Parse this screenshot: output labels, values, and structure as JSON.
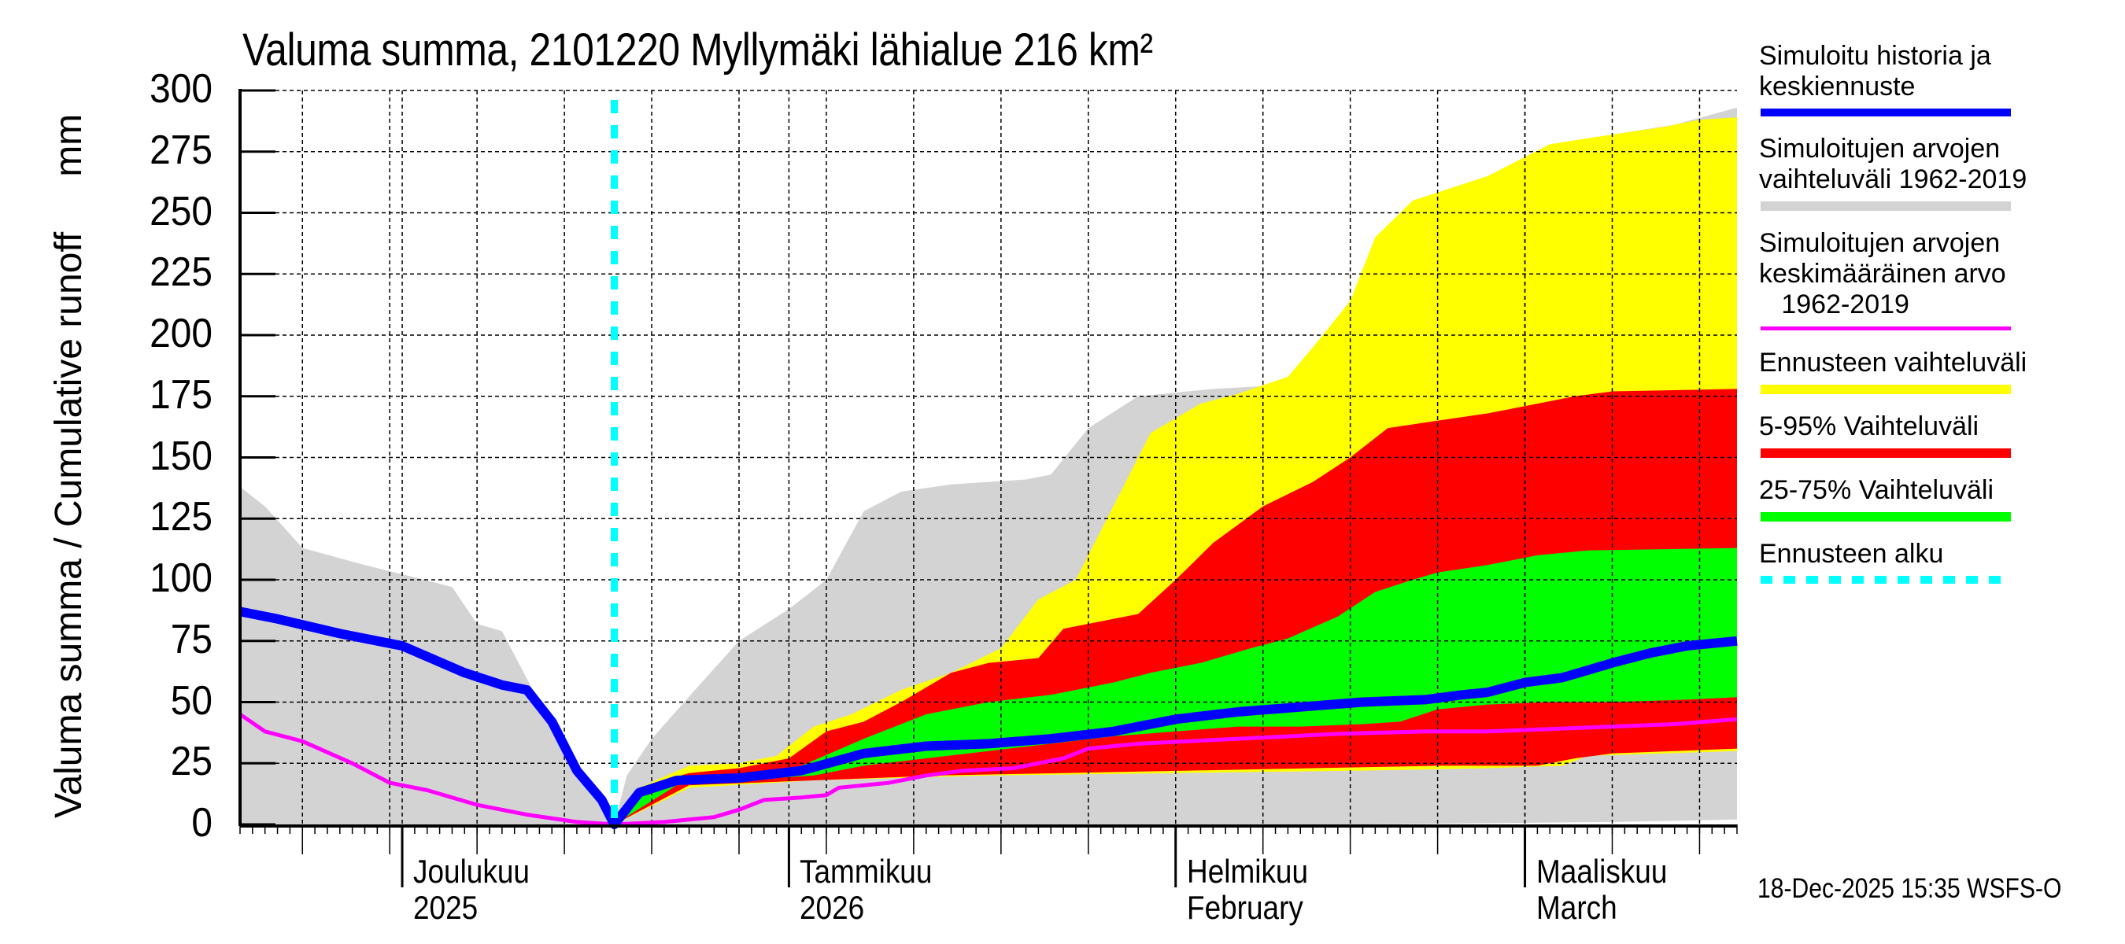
{
  "chart_data": {
    "type": "area",
    "title": "Valuma summa, 2101220 Myllymäki lähialue 216 km²",
    "ylabel": "Valuma summa / Cumulative runoff",
    "yunit": "mm",
    "ylim": [
      0,
      300
    ],
    "yticks": [
      0,
      25,
      50,
      75,
      100,
      125,
      150,
      175,
      200,
      225,
      250,
      275,
      300
    ],
    "grid": true,
    "x_unit": "days since 18-Nov-2025",
    "xlim": [
      0,
      120
    ],
    "forecast_start_day": 30,
    "month_ticks": [
      {
        "day": 13,
        "line1": "Joulukuu",
        "line2": "2025"
      },
      {
        "day": 44,
        "line1": "Tammikuu",
        "line2": "2026"
      },
      {
        "day": 75,
        "line1": "Helmikuu",
        "line2": "February"
      },
      {
        "day": 103,
        "line1": "Maaliskuu",
        "line2": "March"
      }
    ],
    "series": [
      {
        "name": "Simuloitujen arvojen vaihteluväli 1962-2019",
        "kind": "band",
        "color": "#d3d3d3",
        "upper": [
          [
            0,
            138
          ],
          [
            2,
            130
          ],
          [
            5,
            113
          ],
          [
            10,
            106
          ],
          [
            14,
            101
          ],
          [
            17,
            97
          ],
          [
            19,
            82
          ],
          [
            21,
            79
          ],
          [
            25,
            40
          ],
          [
            28,
            15
          ],
          [
            30,
            0
          ],
          [
            31,
            20
          ],
          [
            33,
            35
          ],
          [
            37,
            58
          ],
          [
            40,
            75
          ],
          [
            44,
            88
          ],
          [
            47,
            100
          ],
          [
            50,
            128
          ],
          [
            53,
            136
          ],
          [
            57,
            139
          ],
          [
            63,
            141
          ],
          [
            65,
            143
          ],
          [
            68,
            162
          ],
          [
            72,
            175
          ],
          [
            78,
            178
          ],
          [
            85,
            180
          ],
          [
            90,
            183
          ],
          [
            92,
            183
          ],
          [
            95,
            205
          ],
          [
            98,
            245
          ],
          [
            101,
            260
          ],
          [
            105,
            272
          ],
          [
            110,
            282
          ],
          [
            115,
            286
          ],
          [
            120,
            293
          ]
        ],
        "lower": [
          [
            0,
            0
          ],
          [
            30,
            0
          ],
          [
            60,
            0
          ],
          [
            90,
            0
          ],
          [
            110,
            1
          ],
          [
            120,
            2
          ]
        ]
      },
      {
        "name": "Ennusteen vaihteluväli",
        "kind": "band",
        "color": "#ffff00",
        "upper": [
          [
            30,
            0
          ],
          [
            32,
            15
          ],
          [
            36,
            24
          ],
          [
            40,
            25
          ],
          [
            43,
            28
          ],
          [
            46,
            40
          ],
          [
            49,
            45
          ],
          [
            53,
            55
          ],
          [
            57,
            62
          ],
          [
            61,
            72
          ],
          [
            64,
            92
          ],
          [
            67,
            100
          ],
          [
            70,
            130
          ],
          [
            73,
            160
          ],
          [
            77,
            172
          ],
          [
            80,
            176
          ],
          [
            84,
            183
          ],
          [
            86,
            195
          ],
          [
            89,
            214
          ],
          [
            91,
            240
          ],
          [
            94,
            255
          ],
          [
            100,
            265
          ],
          [
            105,
            278
          ],
          [
            110,
            282
          ],
          [
            114,
            285
          ],
          [
            117,
            288
          ],
          [
            120,
            289
          ]
        ],
        "lower": [
          [
            30,
            0
          ],
          [
            36,
            15
          ],
          [
            46,
            18
          ],
          [
            60,
            20
          ],
          [
            75,
            21
          ],
          [
            90,
            22
          ],
          [
            100,
            23
          ],
          [
            106,
            24
          ],
          [
            108,
            28
          ],
          [
            120,
            30
          ]
        ]
      },
      {
        "name": "5-95% Vaihteluväli",
        "kind": "band",
        "color": "#ff0000",
        "upper": [
          [
            30,
            0
          ],
          [
            32,
            15
          ],
          [
            36,
            21
          ],
          [
            40,
            23
          ],
          [
            44,
            27
          ],
          [
            47,
            38
          ],
          [
            50,
            42
          ],
          [
            53,
            50
          ],
          [
            57,
            62
          ],
          [
            60,
            66
          ],
          [
            64,
            68
          ],
          [
            66,
            80
          ],
          [
            70,
            84
          ],
          [
            72,
            86
          ],
          [
            75,
            100
          ],
          [
            78,
            115
          ],
          [
            82,
            130
          ],
          [
            86,
            140
          ],
          [
            89,
            150
          ],
          [
            92,
            162
          ],
          [
            96,
            165
          ],
          [
            100,
            168
          ],
          [
            104,
            172
          ],
          [
            107,
            175
          ],
          [
            110,
            177
          ],
          [
            120,
            178
          ]
        ],
        "lower": [
          [
            30,
            0
          ],
          [
            36,
            16
          ],
          [
            46,
            18
          ],
          [
            56,
            20
          ],
          [
            66,
            21
          ],
          [
            76,
            22
          ],
          [
            86,
            23
          ],
          [
            96,
            24
          ],
          [
            104,
            24
          ],
          [
            107,
            27
          ],
          [
            110,
            29
          ],
          [
            120,
            31
          ]
        ]
      },
      {
        "name": "25-75% Vaihteluväli",
        "kind": "band",
        "color": "#00ff00",
        "upper": [
          [
            30,
            0
          ],
          [
            33,
            16
          ],
          [
            40,
            20
          ],
          [
            45,
            24
          ],
          [
            50,
            35
          ],
          [
            55,
            45
          ],
          [
            60,
            50
          ],
          [
            65,
            53
          ],
          [
            70,
            58
          ],
          [
            73,
            62
          ],
          [
            77,
            66
          ],
          [
            81,
            72
          ],
          [
            84,
            76
          ],
          [
            88,
            85
          ],
          [
            91,
            95
          ],
          [
            94,
            100
          ],
          [
            96,
            103
          ],
          [
            100,
            106
          ],
          [
            104,
            110
          ],
          [
            108,
            112
          ],
          [
            120,
            113
          ]
        ],
        "lower": [
          [
            30,
            0
          ],
          [
            35,
            16
          ],
          [
            40,
            18
          ],
          [
            46,
            20
          ],
          [
            50,
            24
          ],
          [
            55,
            27
          ],
          [
            60,
            30
          ],
          [
            65,
            33
          ],
          [
            70,
            36
          ],
          [
            75,
            38
          ],
          [
            80,
            40
          ],
          [
            85,
            40
          ],
          [
            90,
            41
          ],
          [
            93,
            42
          ],
          [
            96,
            47
          ],
          [
            100,
            49
          ],
          [
            105,
            50
          ],
          [
            110,
            50
          ],
          [
            116,
            51
          ],
          [
            120,
            52
          ]
        ]
      },
      {
        "name": "Simuloitujen arvojen keskimääräinen arvo 1962-2019",
        "kind": "line",
        "color": "#ff00ff",
        "points": [
          [
            0,
            45
          ],
          [
            2,
            38
          ],
          [
            5,
            34
          ],
          [
            9,
            25
          ],
          [
            12,
            17
          ],
          [
            15,
            14
          ],
          [
            19,
            8
          ],
          [
            23,
            4
          ],
          [
            27,
            1
          ],
          [
            30,
            0
          ],
          [
            34,
            1
          ],
          [
            38,
            3
          ],
          [
            40,
            6
          ],
          [
            42,
            10
          ],
          [
            45,
            11
          ],
          [
            47,
            12
          ],
          [
            48,
            15
          ],
          [
            52,
            17
          ],
          [
            55,
            20
          ],
          [
            58,
            22
          ],
          [
            62,
            23
          ],
          [
            66,
            27
          ],
          [
            68,
            31
          ],
          [
            72,
            33
          ],
          [
            80,
            35
          ],
          [
            88,
            37
          ],
          [
            95,
            38
          ],
          [
            100,
            38
          ],
          [
            105,
            39
          ],
          [
            110,
            40
          ],
          [
            115,
            41
          ],
          [
            120,
            43
          ]
        ]
      },
      {
        "name": "Simuloitu historia ja keskiennuste",
        "kind": "line",
        "color": "#0000ff",
        "points": [
          [
            0,
            87
          ],
          [
            3,
            84
          ],
          [
            8,
            78
          ],
          [
            13,
            73
          ],
          [
            18,
            62
          ],
          [
            21,
            57
          ],
          [
            23,
            55
          ],
          [
            25,
            42
          ],
          [
            27,
            22
          ],
          [
            29,
            10
          ],
          [
            30,
            0
          ],
          [
            32,
            13
          ],
          [
            35,
            18
          ],
          [
            40,
            19
          ],
          [
            45,
            22
          ],
          [
            50,
            29
          ],
          [
            55,
            32
          ],
          [
            60,
            33
          ],
          [
            65,
            35
          ],
          [
            70,
            38
          ],
          [
            75,
            43
          ],
          [
            80,
            46
          ],
          [
            85,
            48
          ],
          [
            90,
            50
          ],
          [
            95,
            51
          ],
          [
            98,
            53
          ],
          [
            100,
            54
          ],
          [
            103,
            58
          ],
          [
            106,
            60
          ],
          [
            108,
            63
          ],
          [
            110,
            66
          ],
          [
            113,
            70
          ],
          [
            116,
            73
          ],
          [
            120,
            75
          ]
        ]
      }
    ]
  },
  "legend": [
    {
      "text": "Simuloitu historia ja\nkeskiennuste",
      "color": "#0000ff",
      "style": "solid-thick"
    },
    {
      "text": "Simuloitujen arvojen\nvaihteluväli 1962-2019",
      "color": "#d3d3d3",
      "style": "solid-wide"
    },
    {
      "text": "Simuloitujen arvojen\nkeskimääräinen arvo\n   1962-2019",
      "color": "#ff00ff",
      "style": "solid-thin"
    },
    {
      "text": "Ennusteen vaihteluväli",
      "color": "#ffff00",
      "style": "solid-wide"
    },
    {
      "text": "5-95% Vaihteluväli",
      "color": "#ff0000",
      "style": "solid-wide"
    },
    {
      "text": "25-75% Vaihteluväli",
      "color": "#00ff00",
      "style": "solid-wide"
    },
    {
      "text": "Ennusteen alku",
      "color": "#00ffff",
      "style": "dashed"
    }
  ],
  "footer": {
    "timestamp": "18-Dec-2025 15:35 WSFS-O"
  }
}
